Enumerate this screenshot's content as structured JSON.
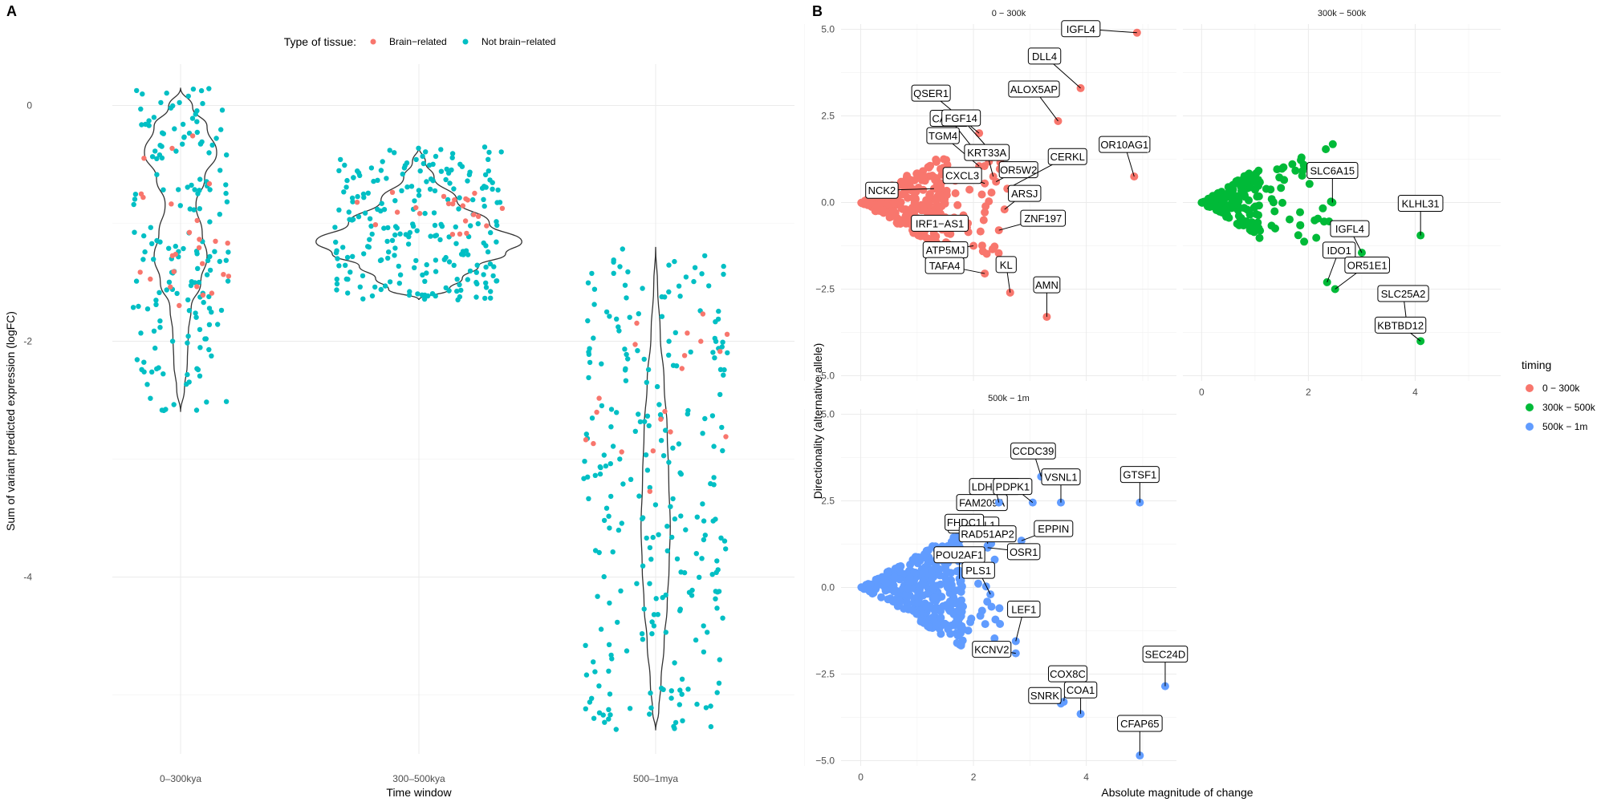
{
  "panel_labels": {
    "a": "A",
    "b": "B"
  },
  "chart_data": [
    {
      "type": "scatter",
      "subtype": "violin-with-jitter",
      "xlabel": "Time window",
      "ylabel": "Sum of variant predicted expression (logFC)",
      "categories": [
        "0–300kya",
        "300–500kya",
        "500–1mya"
      ],
      "ylim": [
        -5.5,
        0.35
      ],
      "yticks": [
        0,
        -2,
        -4
      ],
      "grid": true,
      "legend": {
        "title": "Type of tissue:",
        "position": "top",
        "entries": [
          {
            "name": "Brain−related",
            "color": "#f8766d"
          },
          {
            "name": "Not brain−related",
            "color": "#00bfc4"
          }
        ]
      },
      "violins": [
        {
          "category": "0–300kya",
          "min": -2.6,
          "max": 0.15,
          "color": "#333333"
        },
        {
          "category": "300–500kya",
          "min": -1.65,
          "max": -0.35,
          "color": "#333333"
        },
        {
          "category": "500–1mya",
          "min": -5.3,
          "max": -1.2,
          "color": "#333333"
        }
      ],
      "series": [
        {
          "name": "Brain−related",
          "groups": [
            {
              "category": "0–300kya",
              "n": 26,
              "ymin": -1.7,
              "ymax": -0.2
            },
            {
              "category": "300–500kya",
              "n": 22,
              "ymin": -1.1,
              "ymax": -0.7
            },
            {
              "category": "500–1mya",
              "n": 20,
              "ymin": -3.4,
              "ymax": -1.6
            }
          ]
        },
        {
          "name": "Not brain−related",
          "groups": [
            {
              "category": "0–300kya",
              "n": 170,
              "ymin": -2.6,
              "ymax": 0.15
            },
            {
              "category": "300–500kya",
              "n": 230,
              "ymin": -1.65,
              "ymax": -0.35
            },
            {
              "category": "500–1mya",
              "n": 260,
              "ymin": -5.3,
              "ymax": -1.2
            }
          ]
        }
      ]
    },
    {
      "type": "scatter",
      "subtype": "faceted",
      "xlabel": "Absolute magnitude of change",
      "ylabel": "Directionality (alternative allele)",
      "xlim": [
        -0.35,
        5.6
      ],
      "ylim": [
        -5.15,
        5.15
      ],
      "xticks": [
        0,
        2,
        4
      ],
      "yticks": [
        5.0,
        2.5,
        0.0,
        -2.5,
        -5.0
      ],
      "ytick_labels": [
        "5.0",
        "2.5",
        "0.0",
        "−2.5",
        "−5.0"
      ],
      "grid": true,
      "legend": {
        "title": "timing",
        "position": "right",
        "entries": [
          {
            "name": "0 − 300k",
            "color": "#f8766d"
          },
          {
            "name": "300k − 500k",
            "color": "#00ba38"
          },
          {
            "name": "500k − 1m",
            "color": "#619cff"
          }
        ]
      },
      "facets": [
        {
          "title": "0 − 300k",
          "color": "#f8766d",
          "cloud": {
            "n": 260,
            "xmax": 1.2
          },
          "points": [
            {
              "label": "IGFL4",
              "x": 4.9,
              "y": 4.9
            },
            {
              "label": "DLL4",
              "x": 3.9,
              "y": 3.3
            },
            {
              "label": "ALOX5AP",
              "x": 3.5,
              "y": 2.35
            },
            {
              "label": "QSER1",
              "x": 2.1,
              "y": 2.0
            },
            {
              "label": "CAPN5",
              "x": 2.0,
              "y": 1.55
            },
            {
              "label": "FGF14",
              "x": 2.35,
              "y": 1.4
            },
            {
              "label": "TGM4",
              "x": 2.1,
              "y": 1.05
            },
            {
              "label": "KRT33A",
              "x": 2.35,
              "y": 0.75
            },
            {
              "label": "OR10AG1",
              "x": 4.85,
              "y": 0.75
            },
            {
              "label": "CXCL3",
              "x": 2.2,
              "y": 0.55
            },
            {
              "label": "OR5W2",
              "x": 2.4,
              "y": 0.6
            },
            {
              "label": "CERKL",
              "x": 2.6,
              "y": 0.4
            },
            {
              "label": "NCK2",
              "x": 1.3,
              "y": 0.4
            },
            {
              "label": "ARSJ",
              "x": 2.55,
              "y": -0.2
            },
            {
              "label": "IRF1−AS1",
              "x": 1.9,
              "y": -0.6
            },
            {
              "label": "ATP5MJ",
              "x": 2.0,
              "y": -1.25
            },
            {
              "label": "ZNF197",
              "x": 2.45,
              "y": -0.8
            },
            {
              "label": "TAFA4",
              "x": 2.2,
              "y": -2.05
            },
            {
              "label": "KL",
              "x": 2.65,
              "y": -2.6
            },
            {
              "label": "AMN",
              "x": 3.3,
              "y": -3.3
            }
          ]
        },
        {
          "title": "300k − 500k",
          "color": "#00ba38",
          "cloud": {
            "n": 140,
            "xmax": 0.85
          },
          "points": [
            {
              "label": "SLC6A15",
              "x": 2.45,
              "y": 0.0
            },
            {
              "label": "KLHL31",
              "x": 4.1,
              "y": -0.95
            },
            {
              "label": "IGFL4",
              "x": 3.0,
              "y": -1.45
            },
            {
              "label": "IDO1",
              "x": 2.35,
              "y": -2.3
            },
            {
              "label": "OR51E1",
              "x": 2.5,
              "y": -2.5
            },
            {
              "label": "SLC25A2",
              "x": 3.85,
              "y": -3.6
            },
            {
              "label": "KBTBD12",
              "x": 4.1,
              "y": -4.0
            }
          ]
        },
        {
          "title": "500k − 1m",
          "color": "#619cff",
          "cloud": {
            "n": 320,
            "xmax": 1.4
          },
          "points": [
            {
              "label": "FAM209A",
              "x": 2.15,
              "y": 2.45
            },
            {
              "label": "CCDC39",
              "x": 3.2,
              "y": 3.2
            },
            {
              "label": "EPB41L1",
              "x": 2.0,
              "y": 1.8
            },
            {
              "label": "LDHAL6B",
              "x": 2.45,
              "y": 2.45
            },
            {
              "label": "VSNL1",
              "x": 3.55,
              "y": 2.45
            },
            {
              "label": "GTSF1",
              "x": 4.95,
              "y": 2.45
            },
            {
              "label": "FHDC1",
              "x": 2.05,
              "y": 1.65
            },
            {
              "label": "PDPK1",
              "x": 3.05,
              "y": 2.45
            },
            {
              "label": "RAD51AP2",
              "x": 2.25,
              "y": 1.2
            },
            {
              "label": "EPPIN",
              "x": 2.85,
              "y": 1.35
            },
            {
              "label": "OSR1",
              "x": 2.25,
              "y": 1.15
            },
            {
              "label": "POU2AF1",
              "x": 1.75,
              "y": 0.25
            },
            {
              "label": "PLS1",
              "x": 2.3,
              "y": -0.2
            },
            {
              "label": "LEF1",
              "x": 2.75,
              "y": -1.55
            },
            {
              "label": "KCNV2",
              "x": 2.75,
              "y": -1.9
            },
            {
              "label": "COX8C",
              "x": 3.6,
              "y": -3.3
            },
            {
              "label": "SEC24D",
              "x": 5.4,
              "y": -2.85
            },
            {
              "label": "SNRK",
              "x": 3.55,
              "y": -3.35
            },
            {
              "label": "COA1",
              "x": 3.9,
              "y": -3.65
            },
            {
              "label": "CFAP65",
              "x": 4.95,
              "y": -4.85
            }
          ]
        }
      ]
    }
  ]
}
